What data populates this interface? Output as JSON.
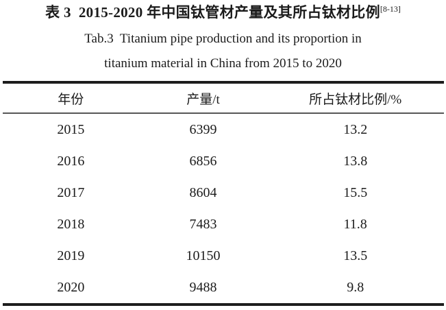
{
  "page": {
    "background": "#ffffff",
    "text_color": "#1b1b1b",
    "rule_color": "#1d1d1d",
    "header_rule_color": "#565656"
  },
  "titles": {
    "zh": "表 3  2015-2020 年中国钛管材产量及其所占钛材比例",
    "zh_ref": "[8-13]",
    "en_line1": "Tab.3  Titanium pipe production and its proportion in",
    "en_line2": "titanium material in China from 2015 to 2020"
  },
  "table": {
    "columns": [
      "年份",
      "产量/t",
      "所占钛材比例/%"
    ],
    "rows": [
      [
        "2015",
        "6399",
        "13.2"
      ],
      [
        "2016",
        "6856",
        "13.8"
      ],
      [
        "2017",
        "8604",
        "15.5"
      ],
      [
        "2018",
        "7483",
        "11.8"
      ],
      [
        "2019",
        "10150",
        "13.5"
      ],
      [
        "2020",
        "9488",
        "9.8"
      ]
    ]
  },
  "chart_data": {
    "type": "table",
    "title": "2015-2020 年中国钛管材产量及其所占钛材比例 / Titanium pipe production and its proportion in titanium material in China from 2015 to 2020",
    "columns": [
      "年份 (Year)",
      "产量/t (Production, t)",
      "所占钛材比例/% (Proportion of titanium material, %)"
    ],
    "x": [
      2015,
      2016,
      2017,
      2018,
      2019,
      2020
    ],
    "series": [
      {
        "name": "产量/t",
        "values": [
          6399,
          6856,
          8604,
          7483,
          10150,
          9488
        ]
      },
      {
        "name": "所占钛材比例/%",
        "values": [
          13.2,
          13.8,
          15.5,
          11.8,
          13.5,
          9.8
        ]
      }
    ],
    "citation": "[8-13]"
  }
}
